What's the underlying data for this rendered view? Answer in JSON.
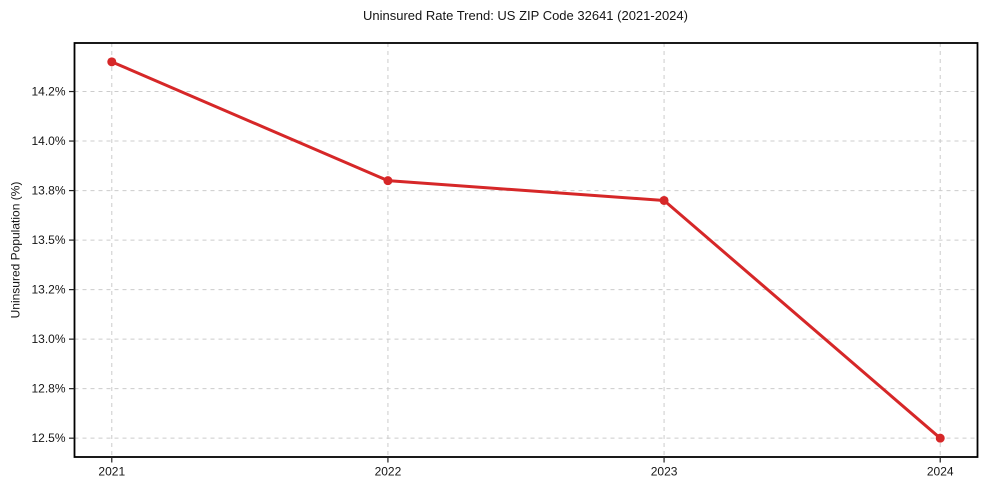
{
  "chart_data": {
    "type": "line",
    "title": "Uninsured Rate Trend: US ZIP Code 32641 (2021-2024)",
    "xlabel": "",
    "ylabel": "Uninsured Population (%)",
    "x": [
      2021,
      2022,
      2023,
      2024
    ],
    "values": [
      14.4,
      13.8,
      13.7,
      12.5
    ],
    "units": "%",
    "x_ticks": [
      {
        "value": 2021,
        "label": "2021"
      },
      {
        "value": 2022,
        "label": "2022"
      },
      {
        "value": 2023,
        "label": "2023"
      },
      {
        "value": 2024,
        "label": "2024"
      }
    ],
    "y_ticks": [
      {
        "value": 12.5,
        "label": "12.5%"
      },
      {
        "value": 12.75,
        "label": "12.8%"
      },
      {
        "value": 13.0,
        "label": "13.0%"
      },
      {
        "value": 13.25,
        "label": "13.2%"
      },
      {
        "value": 13.5,
        "label": "13.5%"
      },
      {
        "value": 13.75,
        "label": "13.8%"
      },
      {
        "value": 14.0,
        "label": "14.0%"
      },
      {
        "value": 14.25,
        "label": "14.2%"
      }
    ],
    "xlim": [
      2020.865,
      2024.135
    ],
    "ylim": [
      12.405,
      14.495
    ],
    "grid": {
      "show": true,
      "style": "dashed",
      "color": "#cccccc"
    },
    "legend": {
      "show": false
    },
    "line_color": "#d62728",
    "marker": "circle",
    "line_width": 3,
    "marker_radius": 4.5,
    "axis_color": "#000000",
    "tick_color": "#222222",
    "text_color": "#151515"
  }
}
